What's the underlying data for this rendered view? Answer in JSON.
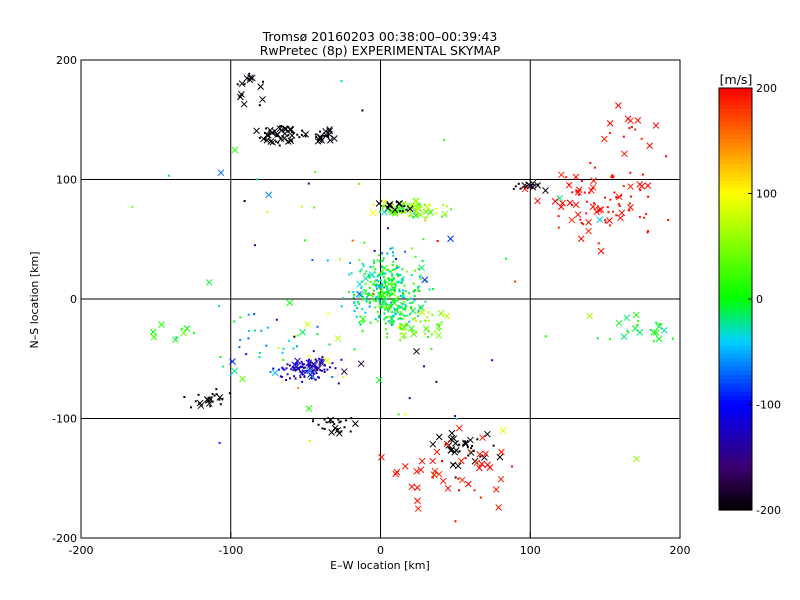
{
  "chart_data": {
    "type": "scatter",
    "title": "Tromsø 20160203 00:38:00–00:39:43",
    "subtitle": "RwPretec (8p) EXPERIMENTAL SKYMAP",
    "xlabel": "E–W location [km]",
    "ylabel": "N–S location [km]",
    "xlim": [
      -200,
      200
    ],
    "ylim": [
      -200,
      200
    ],
    "xticks": [
      -200,
      -100,
      0,
      100,
      200
    ],
    "yticks": [
      -200,
      -100,
      0,
      100,
      200
    ],
    "grid": true,
    "colorbar": {
      "label": "[m/s]",
      "min": -200,
      "max": 200,
      "ticks": [
        200,
        100,
        0,
        -100,
        -200
      ]
    },
    "marker_types": [
      "dot",
      "cross"
    ],
    "clusters": [
      {
        "center": [
          -68,
          137
        ],
        "spread": [
          12,
          6
        ],
        "v": -200,
        "v_spread": 10,
        "n_dot": 25,
        "n_cross": 25
      },
      {
        "center": [
          -40,
          137
        ],
        "spread": [
          7,
          4
        ],
        "v": -200,
        "v_spread": 10,
        "n_dot": 10,
        "n_cross": 12
      },
      {
        "center": [
          -85,
          175
        ],
        "spread": [
          12,
          15
        ],
        "v": -200,
        "v_spread": 10,
        "n_dot": 5,
        "n_cross": 10
      },
      {
        "center": [
          20,
          75
        ],
        "spread": [
          18,
          6
        ],
        "v": 40,
        "v_spread": 60,
        "n_dot": 70,
        "n_cross": 25
      },
      {
        "center": [
          10,
          78
        ],
        "spread": [
          8,
          5
        ],
        "v": -200,
        "v_spread": 10,
        "n_dot": 5,
        "n_cross": 8
      },
      {
        "center": [
          98,
          95
        ],
        "spread": [
          8,
          3
        ],
        "v": -200,
        "v_spread": 10,
        "n_dot": 8,
        "n_cross": 8
      },
      {
        "center": [
          150,
          85
        ],
        "spread": [
          30,
          30
        ],
        "v": 195,
        "v_spread": 10,
        "n_dot": 55,
        "n_cross": 35
      },
      {
        "center": [
          5,
          5
        ],
        "spread": [
          18,
          25
        ],
        "v": -10,
        "v_spread": 40,
        "n_dot": 350,
        "n_cross": 20
      },
      {
        "center": [
          30,
          -20
        ],
        "spread": [
          15,
          12
        ],
        "v": 40,
        "v_spread": 40,
        "n_dot": 40,
        "n_cross": 10
      },
      {
        "center": [
          -50,
          -58
        ],
        "spread": [
          15,
          8
        ],
        "v": -130,
        "v_spread": 30,
        "n_dot": 80,
        "n_cross": 15
      },
      {
        "center": [
          -75,
          -35
        ],
        "spread": [
          30,
          25
        ],
        "v": -40,
        "v_spread": 50,
        "n_dot": 30,
        "n_cross": 6
      },
      {
        "center": [
          -115,
          -85
        ],
        "spread": [
          15,
          8
        ],
        "v": -200,
        "v_spread": 10,
        "n_dot": 18,
        "n_cross": 6
      },
      {
        "center": [
          -30,
          -105
        ],
        "spread": [
          15,
          6
        ],
        "v": -200,
        "v_spread": 10,
        "n_dot": 20,
        "n_cross": 6
      },
      {
        "center": [
          55,
          -125
        ],
        "spread": [
          15,
          12
        ],
        "v": -200,
        "v_spread": 10,
        "n_dot": 15,
        "n_cross": 22
      },
      {
        "center": [
          50,
          -145
        ],
        "spread": [
          40,
          30
        ],
        "v": 195,
        "v_spread": 10,
        "n_dot": 10,
        "n_cross": 35
      },
      {
        "center": [
          175,
          -25
        ],
        "spread": [
          20,
          8
        ],
        "v": 0,
        "v_spread": 25,
        "n_dot": 12,
        "n_cross": 12
      },
      {
        "center": [
          -140,
          -35
        ],
        "spread": [
          15,
          12
        ],
        "v": 5,
        "v_spread": 30,
        "n_dot": 3,
        "n_cross": 6
      },
      {
        "center": [
          170,
          145
        ],
        "spread": [
          20,
          15
        ],
        "v": 195,
        "v_spread": 10,
        "n_dot": 6,
        "n_cross": 8
      },
      {
        "center": [
          0,
          0
        ],
        "spread": [
          120,
          120
        ],
        "v": 0,
        "v_spread": 200,
        "n_dot": 60,
        "n_cross": 20
      }
    ]
  }
}
